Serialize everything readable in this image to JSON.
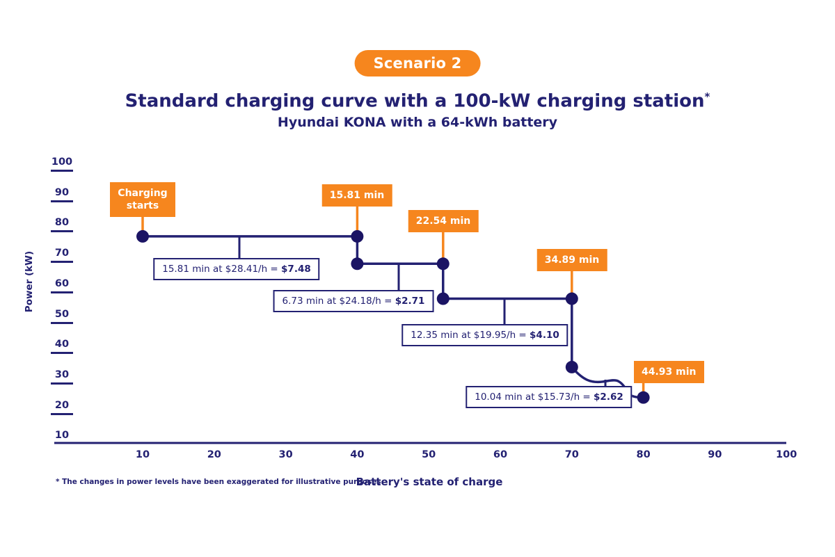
{
  "badge": {
    "label": "Scenario 2"
  },
  "header": {
    "title": "Standard charging curve with a 100-kW charging station",
    "title_sup": "*",
    "subtitle": "Hyundai KONA with a 64-kWh battery"
  },
  "colors": {
    "navy": "#232172",
    "dot_navy": "#1B1464",
    "orange": "#F6861E",
    "background": "#FFFFFF"
  },
  "footnote": "* The changes in power levels have been exaggerated for illustrative purposes.",
  "chart_data": {
    "type": "line",
    "title": "Standard charging curve with a 100-kW charging station",
    "subtitle": "Hyundai KONA with a 64-kWh battery",
    "xlabel": "Battery's state of charge",
    "ylabel": "Power (kW)",
    "xlim": [
      0,
      100
    ],
    "ylim": [
      10,
      100
    ],
    "x_ticks": [
      10,
      20,
      30,
      40,
      50,
      60,
      70,
      80,
      90,
      100
    ],
    "y_ticks": [
      100,
      90,
      80,
      70,
      60,
      50,
      40,
      30,
      20,
      10
    ],
    "grid": false,
    "points": [
      {
        "soc": 10,
        "kw": 76
      },
      {
        "soc": 40,
        "kw": 76
      },
      {
        "soc": 40,
        "kw": 67
      },
      {
        "soc": 52,
        "kw": 67
      },
      {
        "soc": 52,
        "kw": 55.5
      },
      {
        "soc": 70,
        "kw": 55.5
      },
      {
        "soc": 70,
        "kw": 33
      },
      {
        "soc": 80,
        "kw": 23
      }
    ],
    "time_labels": [
      {
        "label": "Charging starts",
        "at_soc": 10
      },
      {
        "label": "15.81 min",
        "at_soc": 40
      },
      {
        "label": "22.54 min",
        "at_soc": 52
      },
      {
        "label": "34.89 min",
        "at_soc": 70
      },
      {
        "label": "44.93 min",
        "at_soc": 80
      }
    ],
    "cost_annotations": [
      {
        "text": "15.81 min at $28.41/h = ",
        "value": "$7.48"
      },
      {
        "text": "6.73 min at $24.18/h = ",
        "value": "$2.71"
      },
      {
        "text": "12.35 min at $19.95/h = ",
        "value": "$4.10"
      },
      {
        "text": "10.04 min at $15.73/h = ",
        "value": "$2.62"
      }
    ]
  }
}
